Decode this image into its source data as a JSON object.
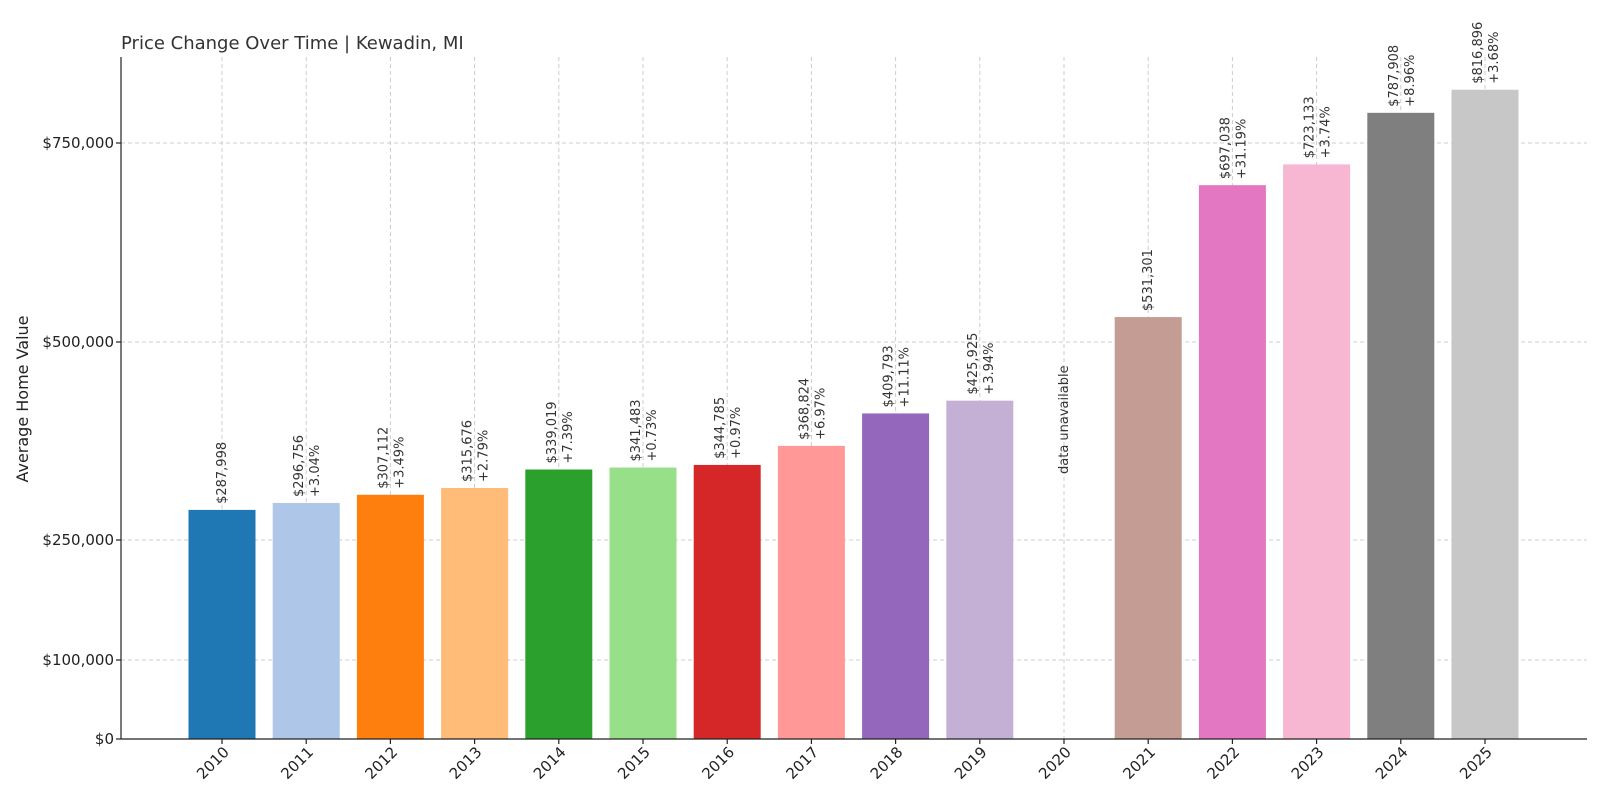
{
  "chart_data": {
    "type": "bar",
    "title": "Price Change Over Time | Kewadin, MI",
    "xlabel": "",
    "ylabel": "Average Home Value",
    "ylim": [
      0,
      858000
    ],
    "grid": true,
    "yscale_note": "piecewise: $0 to $100,000 compressed",
    "yticks": [
      {
        "value": 0,
        "label": "$0"
      },
      {
        "value": 100000,
        "label": "$100,000"
      },
      {
        "value": 250000,
        "label": "$250,000"
      },
      {
        "value": 500000,
        "label": "$500,000"
      },
      {
        "value": 750000,
        "label": "$750,000"
      }
    ],
    "categories": [
      "2010",
      "2011",
      "2012",
      "2013",
      "2014",
      "2015",
      "2016",
      "2017",
      "2018",
      "2019",
      "2020",
      "2021",
      "2022",
      "2023",
      "2024",
      "2025"
    ],
    "values": [
      287998,
      296756,
      307112,
      315676,
      339019,
      341483,
      344785,
      368824,
      409793,
      425925,
      null,
      531301,
      697038,
      723133,
      787908,
      816896
    ],
    "value_labels": [
      "$287,998",
      "$296,756",
      "$307,112",
      "$315,676",
      "$339,019",
      "$341,483",
      "$344,785",
      "$368,824",
      "$409,793",
      "$425,925",
      "",
      "$531,301",
      "$697,038",
      "$723,133",
      "$787,908",
      "$816,896"
    ],
    "change_labels": [
      "",
      "+3.04%",
      "+3.49%",
      "+2.79%",
      "+7.39%",
      "+0.73%",
      "+0.97%",
      "+6.97%",
      "+11.11%",
      "+3.94%",
      "",
      "",
      "+31.19%",
      "+3.74%",
      "+8.96%",
      "+3.68%"
    ],
    "missing_label": "data unavailable",
    "colors": [
      "#1f77b4",
      "#aec7e8",
      "#ff7f0e",
      "#ffbb78",
      "#2ca02c",
      "#98df8a",
      "#d62728",
      "#ff9896",
      "#9467bd",
      "#c5b0d5",
      "#8c564b",
      "#c49c94",
      "#e377c2",
      "#f7b6d2",
      "#7f7f7f",
      "#c7c7c7"
    ]
  }
}
